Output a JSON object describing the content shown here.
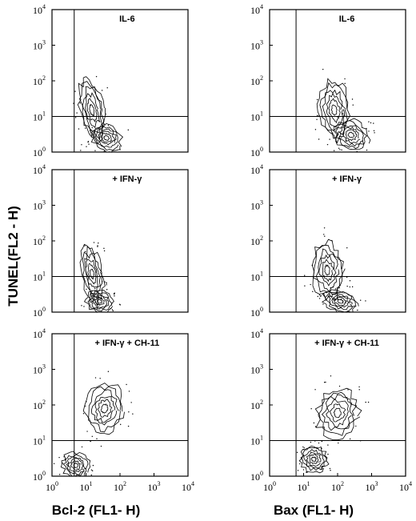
{
  "chart_data": {
    "type": "contour",
    "ylabel": "TUNEL(FL2 - H)",
    "xlabels": [
      "Bcl-2 (FL1- H)",
      "Bax (FL1- H)"
    ],
    "ticks": [
      {
        "base": "10",
        "exp": "0"
      },
      {
        "base": "10",
        "exp": "1"
      },
      {
        "base": "10",
        "exp": "2"
      },
      {
        "base": "10",
        "exp": "3"
      },
      {
        "base": "10",
        "exp": "4"
      }
    ],
    "xlim": [
      1,
      10000
    ],
    "ylim": [
      1,
      10000
    ],
    "xscale": "log",
    "yscale": "log",
    "panels": [
      {
        "title": "IL-6",
        "xlabel": "Bcl-2 (FL1- H)",
        "gate_x": 4.5,
        "gate_y": 10,
        "blobs": [
          {
            "cx": 40,
            "cy": 2.5,
            "rx": 0.45,
            "ry": 0.35,
            "rot": 30
          },
          {
            "cx": 15,
            "cy": 15,
            "rx": 0.35,
            "ry": 0.9,
            "rot": -10
          }
        ]
      },
      {
        "title": "IL-6",
        "xlabel": "Bax (FL1- H)",
        "gate_x": 6,
        "gate_y": 10,
        "blobs": [
          {
            "cx": 250,
            "cy": 3,
            "rx": 0.5,
            "ry": 0.4,
            "rot": 25
          },
          {
            "cx": 80,
            "cy": 15,
            "rx": 0.45,
            "ry": 0.85,
            "rot": -5
          }
        ]
      },
      {
        "title": "+ IFN-γ",
        "xlabel": "Bcl-2 (FL1- H)",
        "gate_x": 4.5,
        "gate_y": 10,
        "blobs": [
          {
            "cx": 25,
            "cy": 2,
            "rx": 0.4,
            "ry": 0.3,
            "rot": 20
          },
          {
            "cx": 15,
            "cy": 12,
            "rx": 0.3,
            "ry": 0.8,
            "rot": -10
          }
        ]
      },
      {
        "title": "+ IFN-γ",
        "xlabel": "Bax (FL1- H)",
        "gate_x": 6,
        "gate_y": 10,
        "blobs": [
          {
            "cx": 120,
            "cy": 2,
            "rx": 0.5,
            "ry": 0.3,
            "rot": 15
          },
          {
            "cx": 50,
            "cy": 15,
            "rx": 0.45,
            "ry": 0.8,
            "rot": -5
          }
        ]
      },
      {
        "title": "+ IFN-γ + CH-11",
        "xlabel": "Bcl-2 (FL1- H)",
        "gate_x": 4.5,
        "gate_y": 10,
        "blobs": [
          {
            "cx": 35,
            "cy": 80,
            "rx": 0.55,
            "ry": 0.7,
            "rot": 10
          },
          {
            "cx": 5,
            "cy": 2,
            "rx": 0.4,
            "ry": 0.35,
            "rot": 30
          }
        ]
      },
      {
        "title": "+ IFN-γ + CH-11",
        "xlabel": "Bax (FL1- H)",
        "gate_x": 6,
        "gate_y": 10,
        "blobs": [
          {
            "cx": 100,
            "cy": 60,
            "rx": 0.6,
            "ry": 0.7,
            "rot": 10
          },
          {
            "cx": 20,
            "cy": 3,
            "rx": 0.4,
            "ry": 0.35,
            "rot": 30
          }
        ]
      }
    ]
  }
}
